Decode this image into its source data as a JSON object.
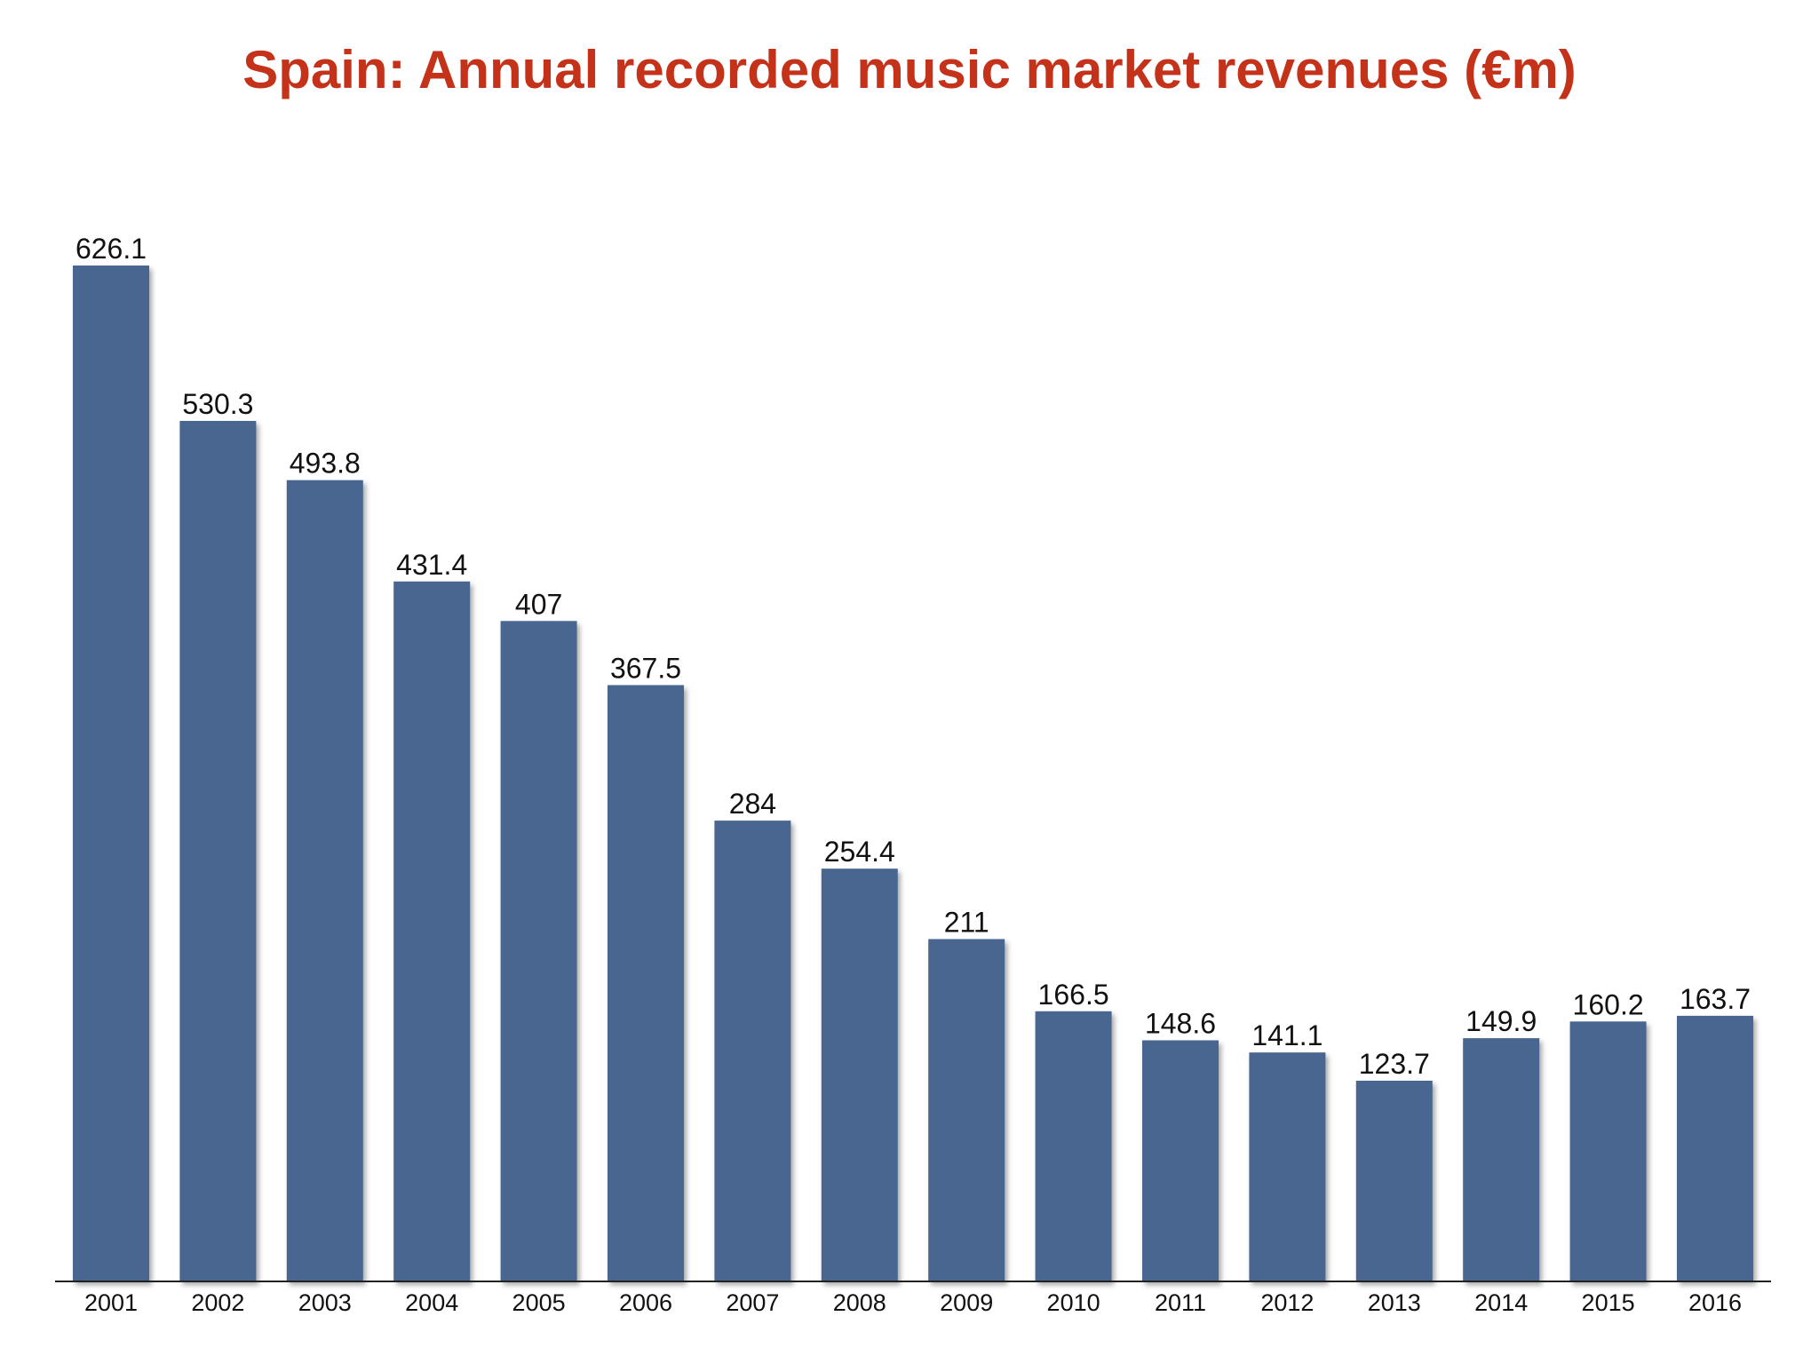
{
  "chart_data": {
    "type": "bar",
    "title": "Spain: Annual recorded music market revenues (€m)",
    "xlabel": "",
    "ylabel": "",
    "categories": [
      "2001",
      "2002",
      "2003",
      "2004",
      "2005",
      "2006",
      "2007",
      "2008",
      "2009",
      "2010",
      "2011",
      "2012",
      "2013",
      "2014",
      "2015",
      "2016"
    ],
    "values": [
      626.1,
      530.3,
      493.8,
      431.4,
      407,
      367.5,
      284,
      254.4,
      211,
      166.5,
      148.6,
      141.1,
      123.7,
      149.9,
      160.2,
      163.7
    ],
    "value_labels": [
      "626.1",
      "530.3",
      "493.8",
      "431.4",
      "407",
      "367.5",
      "284",
      "254.4",
      "211",
      "166.5",
      "148.6",
      "141.1",
      "123.7",
      "149.9",
      "160.2",
      "163.7"
    ],
    "ylim": [
      0,
      626.1
    ],
    "grid": false,
    "legend": "none",
    "colors": {
      "bar": "#4a6690",
      "title": "#c4321a",
      "axis": "#222222"
    }
  }
}
